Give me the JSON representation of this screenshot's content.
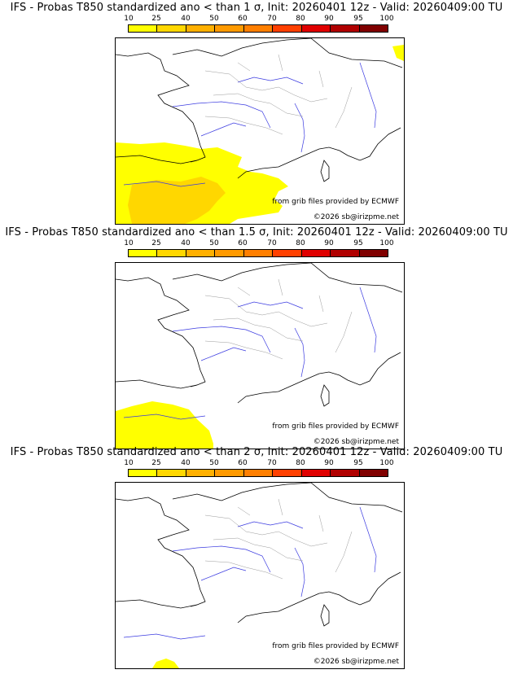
{
  "legend": {
    "ticks": [
      "10",
      "25",
      "40",
      "50",
      "60",
      "70",
      "80",
      "90",
      "95",
      "100"
    ],
    "colors": [
      "#ffff00",
      "#ffd700",
      "#ffb000",
      "#ff9a00",
      "#ff7f00",
      "#ff4000",
      "#e00000",
      "#b00000",
      "#800000",
      "#500000"
    ]
  },
  "credits": {
    "source": "from grib files provided by ECMWF",
    "copyright": "©2026 sb@irizpme.net"
  },
  "panels": [
    {
      "title": "IFS - Probas T850  standardized ano < than 1 σ, Init: 20260401 12z - Valid: 20260409:00 TU"
    },
    {
      "title": "IFS - Probas T850  standardized ano < than 1.5 σ, Init: 20260401 12z - Valid: 20260409:00 TU"
    },
    {
      "title": "IFS - Probas T850  standardized ano < than 2 σ, Init: 20260401 12z - Valid: 20260409:00 TU"
    }
  ]
}
